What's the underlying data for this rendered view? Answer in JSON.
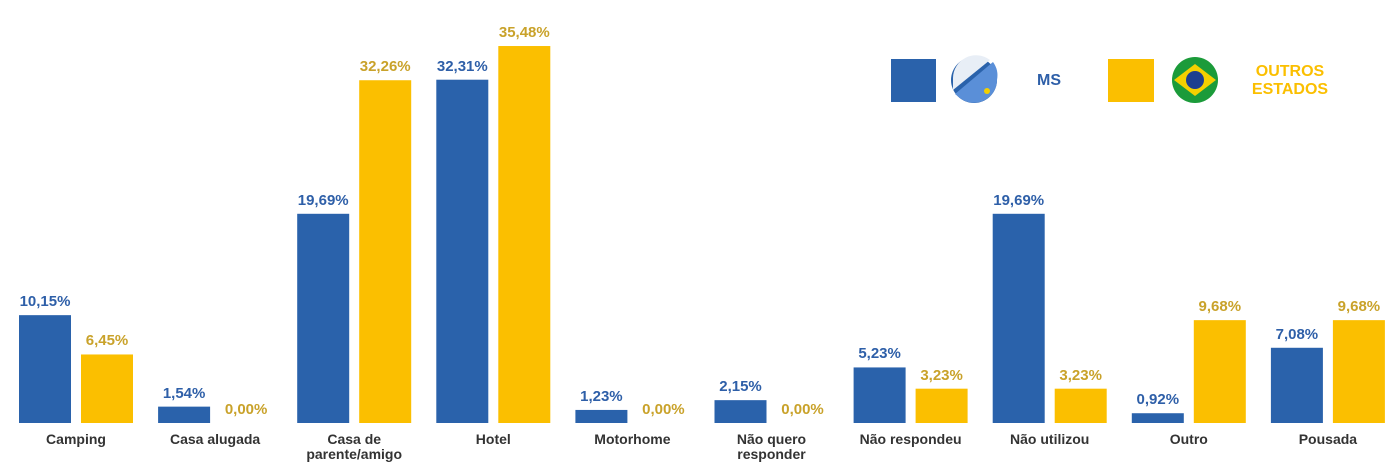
{
  "chart_data": {
    "type": "bar",
    "categories": [
      "Camping",
      "Casa alugada",
      "Casa de\nparente/amigo",
      "Hotel",
      "Motorhome",
      "Não quero\nresponder",
      "Não respondeu",
      "Não utilizou",
      "Outro",
      "Pousada"
    ],
    "series": [
      {
        "name": "MS",
        "color": "#2a62ab",
        "values": [
          10.15,
          1.54,
          19.69,
          32.31,
          1.23,
          2.15,
          5.23,
          19.69,
          0.92,
          7.08
        ],
        "value_labels": [
          "10,15%",
          "1,54%",
          "19,69%",
          "32,31%",
          "1,23%",
          "2,15%",
          "5,23%",
          "19,69%",
          "0,92%",
          "7,08%"
        ]
      },
      {
        "name": "OUTROS\nESTADOS",
        "color": "#fbbf00",
        "values": [
          6.45,
          0,
          32.26,
          35.48,
          0,
          0,
          3.23,
          3.23,
          9.68,
          9.68
        ],
        "value_labels": [
          "6,45%",
          "0,00%",
          "32,26%",
          "35,48%",
          "0,00%",
          "0,00%",
          "3,23%",
          "3,23%",
          "9,68%",
          "9,68%"
        ]
      }
    ],
    "ylim": [
      0,
      40
    ]
  }
}
